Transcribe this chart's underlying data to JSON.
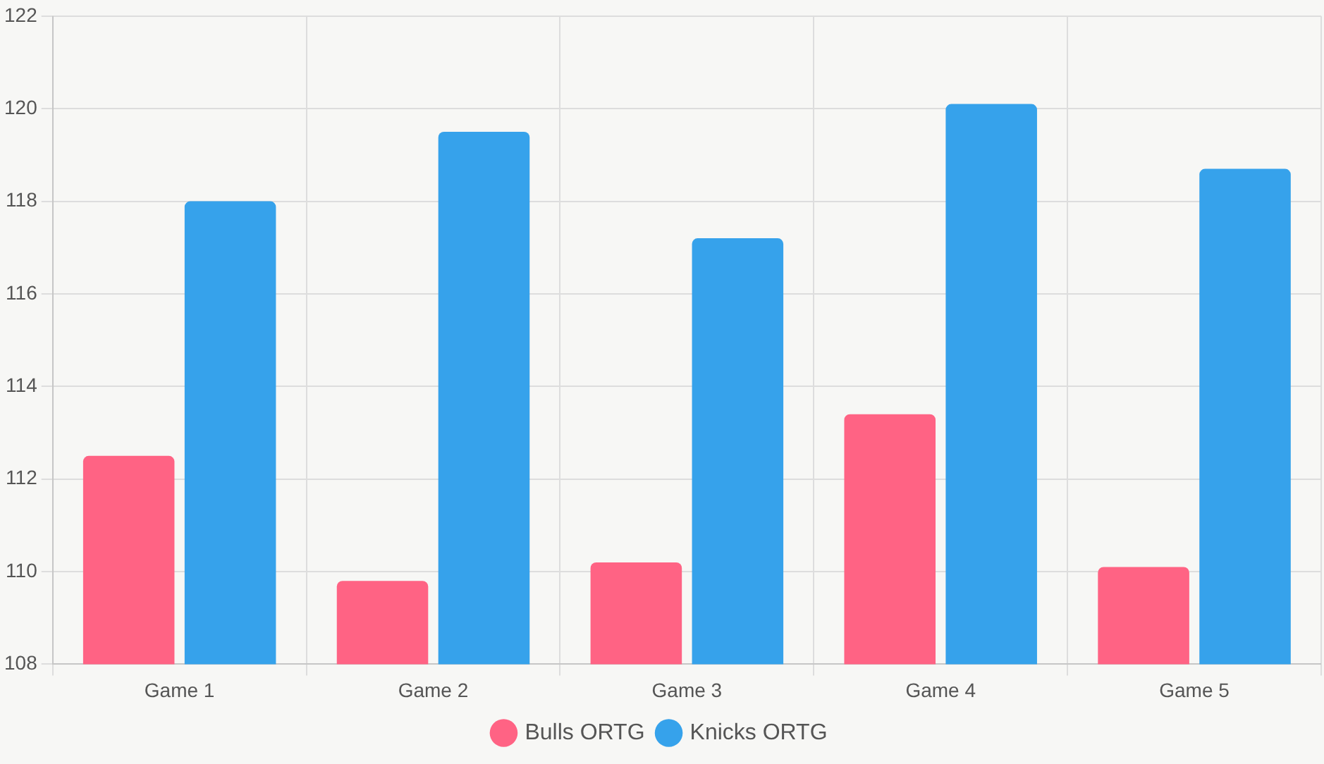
{
  "chart_data": {
    "type": "bar",
    "categories": [
      "Game 1",
      "Game 2",
      "Game 3",
      "Game 4",
      "Game 5"
    ],
    "series": [
      {
        "name": "Bulls ORTG",
        "color": "#ff6384",
        "values": [
          112.5,
          109.8,
          110.2,
          113.4,
          110.1
        ]
      },
      {
        "name": "Knicks ORTG",
        "color": "#36a2eb",
        "values": [
          118.0,
          119.5,
          117.2,
          120.1,
          118.7
        ]
      }
    ],
    "ylim": [
      108,
      122
    ],
    "yticks": [
      108,
      110,
      112,
      114,
      116,
      118,
      120,
      122
    ],
    "grid": true,
    "legend": "bottom"
  }
}
